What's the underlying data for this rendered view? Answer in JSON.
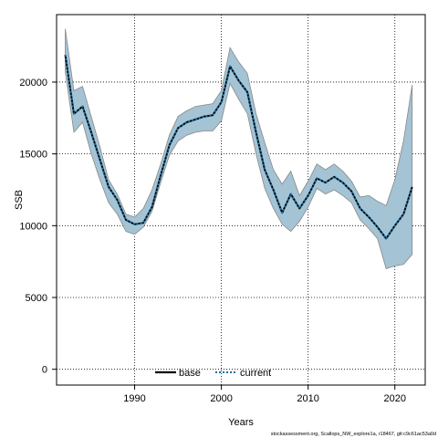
{
  "chart_data": {
    "type": "area",
    "xlabel": "Years",
    "ylabel": "SSB",
    "xlim": [
      1981,
      2023.5
    ],
    "ylim": [
      -1100,
      24700
    ],
    "x_ticks": [
      1990,
      2000,
      2010,
      2020
    ],
    "y_ticks": [
      0,
      5000,
      10000,
      15000,
      20000
    ],
    "grid": true,
    "legend_position": "bottom-center",
    "x": [
      1982,
      1983,
      1984,
      1985,
      1986,
      1987,
      1988,
      1989,
      1990,
      1991,
      1992,
      1993,
      1994,
      1995,
      1996,
      1997,
      1998,
      1999,
      2000,
      2001,
      2002,
      2003,
      2004,
      2005,
      2006,
      2007,
      2008,
      2009,
      2010,
      2011,
      2012,
      2013,
      2014,
      2015,
      2016,
      2017,
      2018,
      2019,
      2020,
      2021,
      2022
    ],
    "series": [
      {
        "name": "base",
        "style": "solid",
        "color": "#000000",
        "values": [
          21900,
          17800,
          18300,
          16500,
          14600,
          12700,
          11800,
          10400,
          10100,
          10200,
          11300,
          13500,
          15600,
          16800,
          17200,
          17400,
          17600,
          17700,
          18600,
          21100,
          20100,
          19300,
          16500,
          13900,
          12500,
          10900,
          12200,
          11200,
          12100,
          13300,
          13000,
          13400,
          13000,
          12400,
          11200,
          10600,
          9900,
          9100,
          10000,
          10800,
          12700
        ]
      },
      {
        "name": "current",
        "style": "dotted",
        "color": "#1a6fa3",
        "values": [
          21900,
          17800,
          18300,
          16500,
          14600,
          12700,
          11800,
          10400,
          10100,
          10200,
          11300,
          13500,
          15600,
          16800,
          17200,
          17400,
          17600,
          17700,
          18600,
          21100,
          20100,
          19300,
          16500,
          13900,
          12500,
          10900,
          12200,
          11200,
          12100,
          13300,
          13000,
          13400,
          13000,
          12400,
          11200,
          10600,
          9900,
          9100,
          10000,
          10800,
          12700
        ]
      }
    ],
    "band": {
      "color": "#a4c3d4",
      "edge_color": "#888888",
      "upper": [
        23700,
        19400,
        19700,
        17600,
        15500,
        13200,
        12200,
        10800,
        10600,
        11200,
        12500,
        14300,
        16300,
        17600,
        18000,
        18300,
        18400,
        18500,
        19400,
        22400,
        21400,
        20600,
        17800,
        15800,
        13900,
        12900,
        13800,
        12100,
        13100,
        14300,
        13900,
        14300,
        13800,
        13100,
        12000,
        12100,
        11700,
        11400,
        13200,
        15900,
        19800
      ],
      "lower": [
        20700,
        16500,
        17200,
        15000,
        13200,
        11600,
        10800,
        9600,
        9400,
        9900,
        11000,
        13000,
        14900,
        15900,
        16300,
        16500,
        16600,
        16600,
        17300,
        19900,
        18800,
        17800,
        15000,
        12600,
        11200,
        10100,
        9600,
        10300,
        11300,
        12600,
        12200,
        12500,
        12100,
        11600,
        10400,
        9800,
        9100,
        7000,
        7200,
        7300,
        8000
      ]
    },
    "legend": [
      "base",
      "current"
    ],
    "footer_text": "stockassessment.org, Scallops_NW_explore1a, r18467, git:c9c61ac53a0d"
  }
}
